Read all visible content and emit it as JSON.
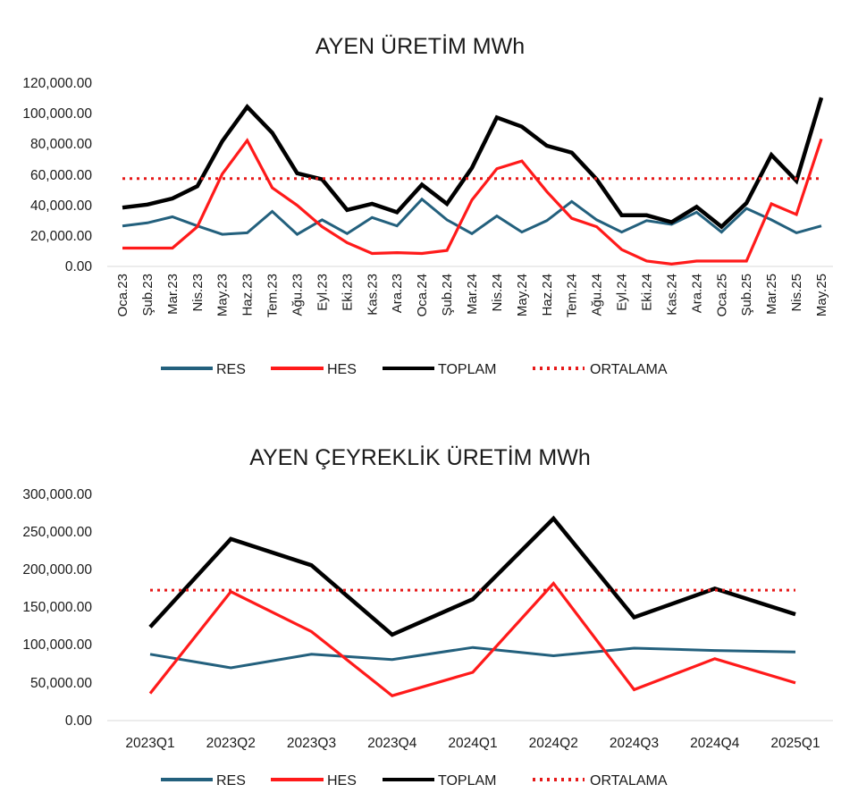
{
  "colors": {
    "RES": "#23607d",
    "HES": "#ff1a1a",
    "TOPLAM": "#000000",
    "ORTALAMA": "#e61919"
  },
  "chart_data": [
    {
      "type": "line",
      "title": "AYEN ÜRETİM MWh",
      "x": [
        "Oca.23",
        "Şub.23",
        "Mar.23",
        "Nis.23",
        "May.23",
        "Haz.23",
        "Tem.23",
        "Ağu.23",
        "Eyl.23",
        "Eki.23",
        "Kas.23",
        "Ara.23",
        "Oca.24",
        "Şub.24",
        "Mar.24",
        "Nis.24",
        "May.24",
        "Haz.24",
        "Tem.24",
        "Ağu.24",
        "Eyl.24",
        "Eki.24",
        "Kas.24",
        "Ara.24",
        "Oca.25",
        "Şub.25",
        "Mar.25",
        "Nis.25",
        "May.25"
      ],
      "ylim": [
        0,
        120000
      ],
      "yticks": [
        "0.00",
        "20,000.00",
        "40,000.00",
        "60,000.00",
        "80,000.00",
        "100,000.00",
        "120,000.00"
      ],
      "series": [
        {
          "name": "RES",
          "values": [
            26500,
            28500,
            32500,
            26500,
            21000,
            22000,
            36000,
            21000,
            30500,
            21500,
            32000,
            26500,
            44000,
            30500,
            21500,
            33000,
            22500,
            30000,
            42500,
            30500,
            22500,
            30000,
            27500,
            35500,
            22500,
            38000,
            30500,
            22000,
            26500
          ]
        },
        {
          "name": "HES",
          "values": [
            12000,
            12000,
            12000,
            26000,
            60500,
            82500,
            51500,
            40000,
            26000,
            15500,
            8500,
            9000,
            8500,
            10500,
            43500,
            64000,
            69000,
            49000,
            31500,
            26000,
            11000,
            3500,
            1500,
            3500,
            3500,
            3500,
            41000,
            34000,
            83500
          ]
        },
        {
          "name": "TOPLAM",
          "values": [
            38500,
            40500,
            44500,
            52500,
            82000,
            104500,
            87500,
            61000,
            57000,
            37000,
            41000,
            35500,
            53500,
            41000,
            64500,
            97500,
            91500,
            79000,
            74500,
            57000,
            33500,
            33500,
            29000,
            39000,
            26000,
            41500,
            73000,
            56000,
            110500
          ]
        },
        {
          "name": "ORTALAMA",
          "style": "dotted",
          "values": [
            57500,
            57500,
            57500,
            57500,
            57500,
            57500,
            57500,
            57500,
            57500,
            57500,
            57500,
            57500,
            57500,
            57500,
            57500,
            57500,
            57500,
            57500,
            57500,
            57500,
            57500,
            57500,
            57500,
            57500,
            57500,
            57500,
            57500,
            57500,
            57500
          ]
        }
      ],
      "legend": [
        "RES",
        "HES",
        "TOPLAM",
        "ORTALAMA"
      ],
      "legend_position": "bottom",
      "grid": false
    },
    {
      "type": "line",
      "title": "AYEN ÇEYREKLİK ÜRETİM MWh",
      "x": [
        "2023Q1",
        "2023Q2",
        "2023Q3",
        "2023Q4",
        "2024Q1",
        "2024Q2",
        "2024Q3",
        "2024Q4",
        "2025Q1"
      ],
      "ylim": [
        0,
        300000
      ],
      "yticks": [
        "0.00",
        "50,000.00",
        "100,000.00",
        "150,000.00",
        "200,000.00",
        "250,000.00",
        "300,000.00"
      ],
      "series": [
        {
          "name": "RES",
          "values": [
            88000,
            70000,
            88000,
            81000,
            97000,
            86000,
            96000,
            93000,
            91000
          ]
        },
        {
          "name": "HES",
          "values": [
            36000,
            171000,
            118000,
            33000,
            64000,
            182000,
            41000,
            82000,
            50000
          ]
        },
        {
          "name": "TOPLAM",
          "values": [
            124000,
            241000,
            206000,
            114000,
            161000,
            268000,
            137000,
            175000,
            141000
          ]
        },
        {
          "name": "ORTALAMA",
          "style": "dotted",
          "values": [
            173000,
            173000,
            173000,
            173000,
            173000,
            173000,
            173000,
            173000,
            173000
          ]
        }
      ],
      "legend": [
        "RES",
        "HES",
        "TOPLAM",
        "ORTALAMA"
      ],
      "legend_position": "bottom",
      "grid": false
    }
  ]
}
